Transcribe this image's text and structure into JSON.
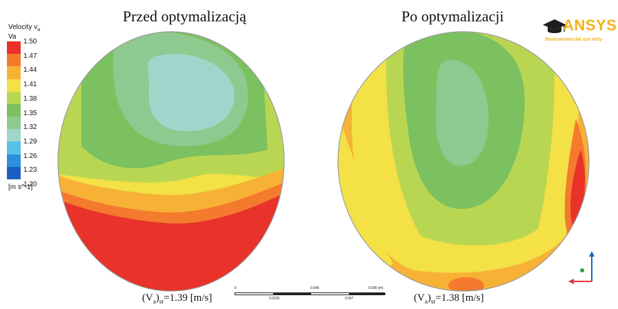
{
  "legend": {
    "title_line1": "Velocity v",
    "title_sub": "a",
    "title_line2": "Va",
    "unit": "[m s^-1]",
    "levels": [
      "1.50",
      "1.47",
      "1.44",
      "1.41",
      "1.38",
      "1.35",
      "1.32",
      "1.29",
      "1.26",
      "1.23",
      "1.20"
    ],
    "colors": [
      "#e8322a",
      "#f47a2e",
      "#f7b236",
      "#f3e146",
      "#b9d653",
      "#7cc160",
      "#8ec98f",
      "#9fd6cc",
      "#55c2e8",
      "#2e8fdb",
      "#1b5fc4"
    ]
  },
  "left_panel": {
    "title": "Przed optymalizacją",
    "caption_pre": "(V",
    "caption_sub1": "a",
    "caption_mid": ")",
    "caption_sub2": "sr",
    "caption_post": "=1.39 [m/s]"
  },
  "right_panel": {
    "title": "Po optymalizacji",
    "caption_pre": "(V",
    "caption_sub1": "a",
    "caption_mid": ")",
    "caption_sub2": "sr",
    "caption_post": "=1.38 [m/s]"
  },
  "scale_bar": {
    "top_labels": [
      "0",
      "0.045",
      "0.090 (m)"
    ],
    "bottom_labels": [
      "0.0225",
      "0.067"
    ]
  },
  "logo": {
    "word": "ANSYS",
    "subtitle": "Noncommercial use only"
  },
  "triad": {
    "colors": [
      "#1565c0",
      "#e53935",
      "#2e9e4f"
    ]
  }
}
